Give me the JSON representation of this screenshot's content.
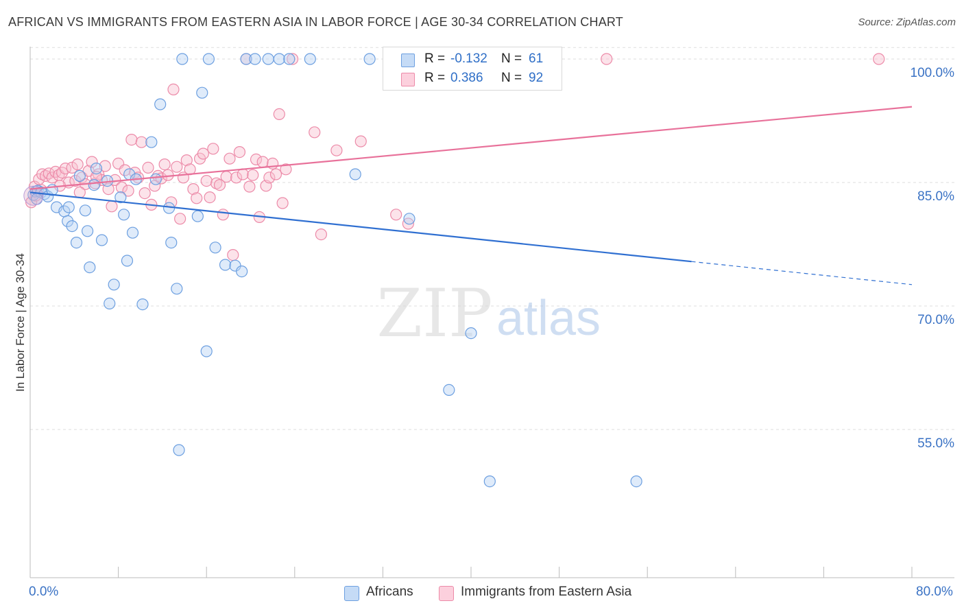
{
  "title": "AFRICAN VS IMMIGRANTS FROM EASTERN ASIA IN LABOR FORCE | AGE 30-34 CORRELATION CHART",
  "source": "Source: ZipAtlas.com",
  "watermark": {
    "zip": "ZIP",
    "atlas": "atlas"
  },
  "legend": {
    "r_label": "R =",
    "n_label": "N =",
    "rows": [
      {
        "r": "-0.132",
        "n": "61",
        "color": "#a9c8f0",
        "border": "#6c9fe0"
      },
      {
        "r": "0.386",
        "n": "92",
        "color": "#f9b9cc",
        "border": "#ec8aa8"
      }
    ]
  },
  "bottom_legend": [
    "Africans",
    "Immigrants from Eastern Asia"
  ],
  "colors": {
    "blue_line": "#2f6fd1",
    "pink_line": "#e8719a",
    "tick_text": "#3a72c4",
    "grid": "#dddddd"
  },
  "chart_data": {
    "type": "scatter",
    "title": "AFRICAN VS IMMIGRANTS FROM EASTERN ASIA IN LABOR FORCE | AGE 30-34 CORRELATION CHART",
    "xlabel": "",
    "ylabel": "In Labor Force | Age 30-34",
    "xlim": [
      0,
      80
    ],
    "ylim": [
      37,
      102
    ],
    "x_tick_labels": [
      "0.0%",
      "80.0%"
    ],
    "y_ticks": [
      55,
      70,
      85,
      100
    ],
    "y_tick_labels": [
      "55.0%",
      "70.0%",
      "85.0%",
      "100.0%"
    ],
    "grid": "horizontal dashed",
    "legend": "top-center",
    "series": [
      {
        "name": "Africans",
        "r": -0.132,
        "n": 61,
        "trend": {
          "x0": 0,
          "y0": 83.8,
          "x1": 60,
          "y1": 75.4,
          "dash_to_x": 80,
          "dash_to_y": 72.6
        },
        "points": [
          [
            0.3,
            83.5
          ],
          [
            0.5,
            83.9
          ],
          [
            0.7,
            84.0
          ],
          [
            1.0,
            83.8
          ],
          [
            1.3,
            83.6
          ],
          [
            1.6,
            83.3
          ],
          [
            2.0,
            84.1
          ],
          [
            2.4,
            82.0
          ],
          [
            3.1,
            81.5
          ],
          [
            3.4,
            80.3
          ],
          [
            3.5,
            82.0
          ],
          [
            3.8,
            79.7
          ],
          [
            4.2,
            77.7
          ],
          [
            4.5,
            85.8
          ],
          [
            5.0,
            81.6
          ],
          [
            5.2,
            79.1
          ],
          [
            5.4,
            74.7
          ],
          [
            5.8,
            84.7
          ],
          [
            6.0,
            86.7
          ],
          [
            6.5,
            78.0
          ],
          [
            7.0,
            85.2
          ],
          [
            7.2,
            70.3
          ],
          [
            7.6,
            72.6
          ],
          [
            8.2,
            83.2
          ],
          [
            8.5,
            81.1
          ],
          [
            8.8,
            75.5
          ],
          [
            9.0,
            86.0
          ],
          [
            9.3,
            78.9
          ],
          [
            9.6,
            85.4
          ],
          [
            10.2,
            70.2
          ],
          [
            11.0,
            89.9
          ],
          [
            11.4,
            85.4
          ],
          [
            11.8,
            94.5
          ],
          [
            12.6,
            81.9
          ],
          [
            12.8,
            77.7
          ],
          [
            13.3,
            72.1
          ],
          [
            13.5,
            52.5
          ],
          [
            13.8,
            100.0
          ],
          [
            15.2,
            80.9
          ],
          [
            15.6,
            95.9
          ],
          [
            16.0,
            64.5
          ],
          [
            16.2,
            100.0
          ],
          [
            16.8,
            77.1
          ],
          [
            17.7,
            75.0
          ],
          [
            18.6,
            74.9
          ],
          [
            19.2,
            74.2
          ],
          [
            19.6,
            100.0
          ],
          [
            20.4,
            100.0
          ],
          [
            21.6,
            100.0
          ],
          [
            22.6,
            100.0
          ],
          [
            23.5,
            100.0
          ],
          [
            25.4,
            100.0
          ],
          [
            29.5,
            86.0
          ],
          [
            30.8,
            100.0
          ],
          [
            34.4,
            80.6
          ],
          [
            38.0,
            59.8
          ],
          [
            40.0,
            66.7
          ],
          [
            41.7,
            48.7
          ],
          [
            43.0,
            100.0
          ],
          [
            55.0,
            48.7
          ],
          [
            0.6,
            83.0
          ]
        ]
      },
      {
        "name": "Immigrants from Eastern Asia",
        "r": 0.386,
        "n": 92,
        "trend": {
          "x0": 0,
          "y0": 84.2,
          "x1": 80,
          "y1": 94.2
        },
        "points": [
          [
            0.1,
            82.6
          ],
          [
            0.4,
            84.5
          ],
          [
            0.8,
            85.4
          ],
          [
            1.1,
            86.0
          ],
          [
            1.4,
            85.8
          ],
          [
            1.7,
            86.1
          ],
          [
            2.0,
            85.6
          ],
          [
            2.3,
            86.3
          ],
          [
            2.6,
            85.9
          ],
          [
            2.9,
            86.2
          ],
          [
            3.2,
            86.7
          ],
          [
            3.5,
            85.0
          ],
          [
            3.8,
            86.8
          ],
          [
            4.1,
            85.2
          ],
          [
            4.3,
            87.2
          ],
          [
            4.7,
            85.6
          ],
          [
            5.0,
            84.8
          ],
          [
            5.3,
            86.4
          ],
          [
            5.6,
            87.5
          ],
          [
            5.9,
            84.9
          ],
          [
            6.2,
            86.0
          ],
          [
            6.5,
            85.3
          ],
          [
            6.8,
            87.0
          ],
          [
            7.1,
            84.2
          ],
          [
            7.4,
            82.1
          ],
          [
            7.7,
            85.3
          ],
          [
            8.0,
            87.3
          ],
          [
            8.3,
            84.4
          ],
          [
            8.6,
            86.5
          ],
          [
            8.9,
            84.0
          ],
          [
            9.2,
            90.2
          ],
          [
            9.5,
            86.2
          ],
          [
            9.8,
            85.6
          ],
          [
            10.1,
            89.9
          ],
          [
            10.4,
            83.7
          ],
          [
            10.7,
            86.8
          ],
          [
            11.0,
            82.3
          ],
          [
            11.3,
            84.6
          ],
          [
            11.6,
            85.8
          ],
          [
            11.9,
            85.5
          ],
          [
            12.2,
            87.2
          ],
          [
            12.5,
            85.9
          ],
          [
            12.8,
            82.6
          ],
          [
            13.0,
            96.3
          ],
          [
            13.3,
            86.9
          ],
          [
            13.6,
            80.6
          ],
          [
            13.9,
            85.6
          ],
          [
            14.2,
            87.7
          ],
          [
            14.5,
            86.6
          ],
          [
            14.8,
            84.2
          ],
          [
            15.1,
            83.1
          ],
          [
            15.4,
            87.9
          ],
          [
            15.7,
            88.5
          ],
          [
            16.0,
            85.2
          ],
          [
            16.3,
            83.2
          ],
          [
            16.6,
            89.1
          ],
          [
            16.9,
            84.9
          ],
          [
            17.2,
            84.7
          ],
          [
            17.5,
            81.1
          ],
          [
            17.8,
            85.7
          ],
          [
            18.1,
            87.9
          ],
          [
            18.4,
            76.2
          ],
          [
            18.7,
            85.6
          ],
          [
            19.0,
            88.7
          ],
          [
            19.3,
            86.0
          ],
          [
            19.6,
            100.0
          ],
          [
            19.9,
            84.5
          ],
          [
            20.2,
            85.9
          ],
          [
            20.5,
            87.8
          ],
          [
            20.8,
            80.8
          ],
          [
            21.1,
            87.5
          ],
          [
            21.4,
            84.6
          ],
          [
            21.7,
            85.6
          ],
          [
            22.0,
            87.3
          ],
          [
            22.3,
            86.0
          ],
          [
            22.6,
            93.3
          ],
          [
            22.9,
            82.5
          ],
          [
            23.2,
            86.6
          ],
          [
            23.8,
            100.0
          ],
          [
            25.8,
            91.1
          ],
          [
            26.4,
            78.7
          ],
          [
            27.8,
            88.9
          ],
          [
            30.0,
            90.0
          ],
          [
            33.2,
            81.1
          ],
          [
            34.3,
            80.0
          ],
          [
            52.3,
            100.0
          ],
          [
            77.0,
            100.0
          ],
          [
            0.5,
            83.4
          ],
          [
            1.0,
            84.1
          ],
          [
            2.7,
            84.6
          ],
          [
            4.5,
            83.8
          ],
          [
            6.0,
            85.7
          ]
        ]
      }
    ]
  }
}
